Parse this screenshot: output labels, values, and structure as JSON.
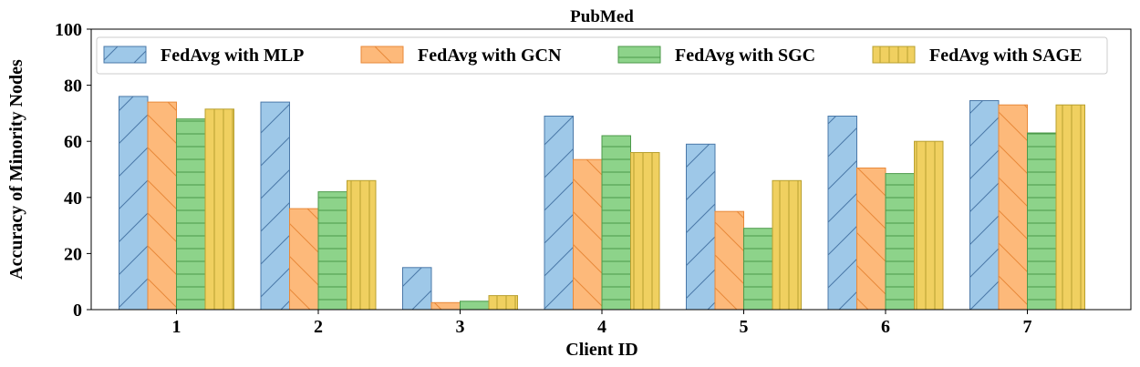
{
  "chart_data": {
    "type": "bar",
    "title": "PubMed",
    "xlabel": "Client ID",
    "ylabel": "Accuracy of Minority Nodes",
    "ylim": [
      0,
      100
    ],
    "yticks": [
      "0",
      "20",
      "40",
      "60",
      "80",
      "100"
    ],
    "categories": [
      "1",
      "2",
      "3",
      "4",
      "5",
      "6",
      "7"
    ],
    "legend_position": "top",
    "grid": false,
    "series": [
      {
        "name": "FedAvg with MLP",
        "values": [
          76,
          74,
          15,
          69,
          59,
          69,
          74.5
        ],
        "color": "#9ec8e8",
        "edge": "#4a78a8",
        "hatch": "diagonal-up"
      },
      {
        "name": "FedAvg with GCN",
        "values": [
          74,
          36,
          2.5,
          53.5,
          35,
          50.5,
          73
        ],
        "color": "#fdb97a",
        "edge": "#e8893a",
        "hatch": "diagonal-down"
      },
      {
        "name": "FedAvg with SGC",
        "values": [
          68,
          42,
          3,
          62,
          29,
          48.5,
          63
        ],
        "color": "#8dd38a",
        "edge": "#4c9a4a",
        "hatch": "horizontal"
      },
      {
        "name": "FedAvg with SAGE",
        "values": [
          71.5,
          46,
          5,
          56,
          46,
          60,
          73
        ],
        "color": "#f0d060",
        "edge": "#b8a030",
        "hatch": "vertical"
      }
    ]
  }
}
